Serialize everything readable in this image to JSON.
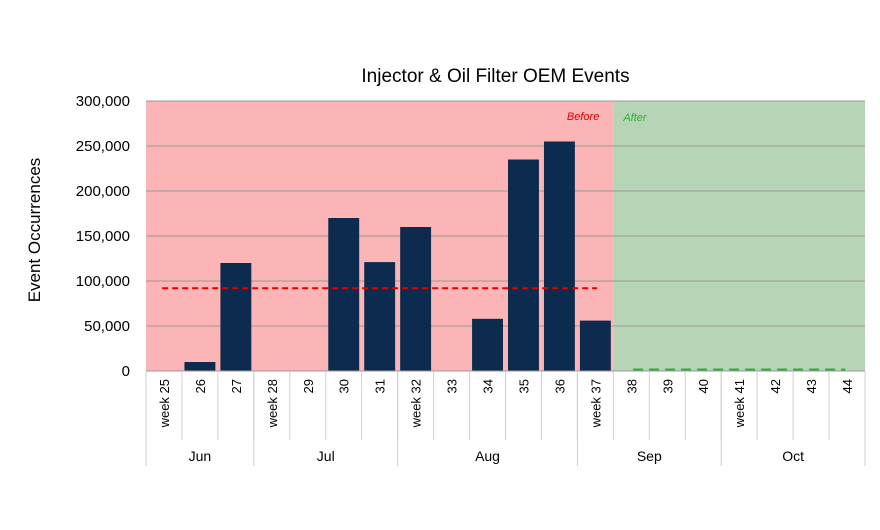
{
  "chart_data": {
    "type": "bar",
    "title": "Injector & Oil Filter OEM Events",
    "ylabel": "Event Occurrences",
    "xlabel": "",
    "ylim": [
      0,
      300000
    ],
    "yticks": [
      "0",
      "50,000",
      "100,000",
      "150,000",
      "200,000",
      "250,000",
      "300,000"
    ],
    "categories": [
      "week 25",
      "26",
      "27",
      "week 28",
      "29",
      "30",
      "31",
      "week 32",
      "33",
      "34",
      "35",
      "36",
      "week 37",
      "38",
      "39",
      "40",
      "week 41",
      "42",
      "43",
      "44"
    ],
    "months": [
      {
        "label": "Jun",
        "weeks": 3
      },
      {
        "label": "Jul",
        "weeks": 4
      },
      {
        "label": "Aug",
        "weeks": 5
      },
      {
        "label": "Sep",
        "weeks": 4
      },
      {
        "label": "Oct",
        "weeks": 4
      }
    ],
    "series": [
      {
        "values": [
          0,
          10000,
          120000,
          0,
          0,
          170000,
          121000,
          160000,
          0,
          58000,
          235000,
          255000,
          56000,
          0,
          0,
          0,
          0,
          0,
          0,
          0
        ]
      }
    ],
    "before_average": 92000,
    "after_average": 0,
    "before_label": "Before",
    "after_label": "After",
    "before_period_weeks": 13,
    "grid": true,
    "colors": {
      "bar": "#0d2b4e",
      "before_region": "#fbb5b6",
      "after_region": "#b5d5b6",
      "before_line": "#e00000",
      "after_line": "#2fae3a",
      "grid": "#9a9a9a"
    }
  }
}
